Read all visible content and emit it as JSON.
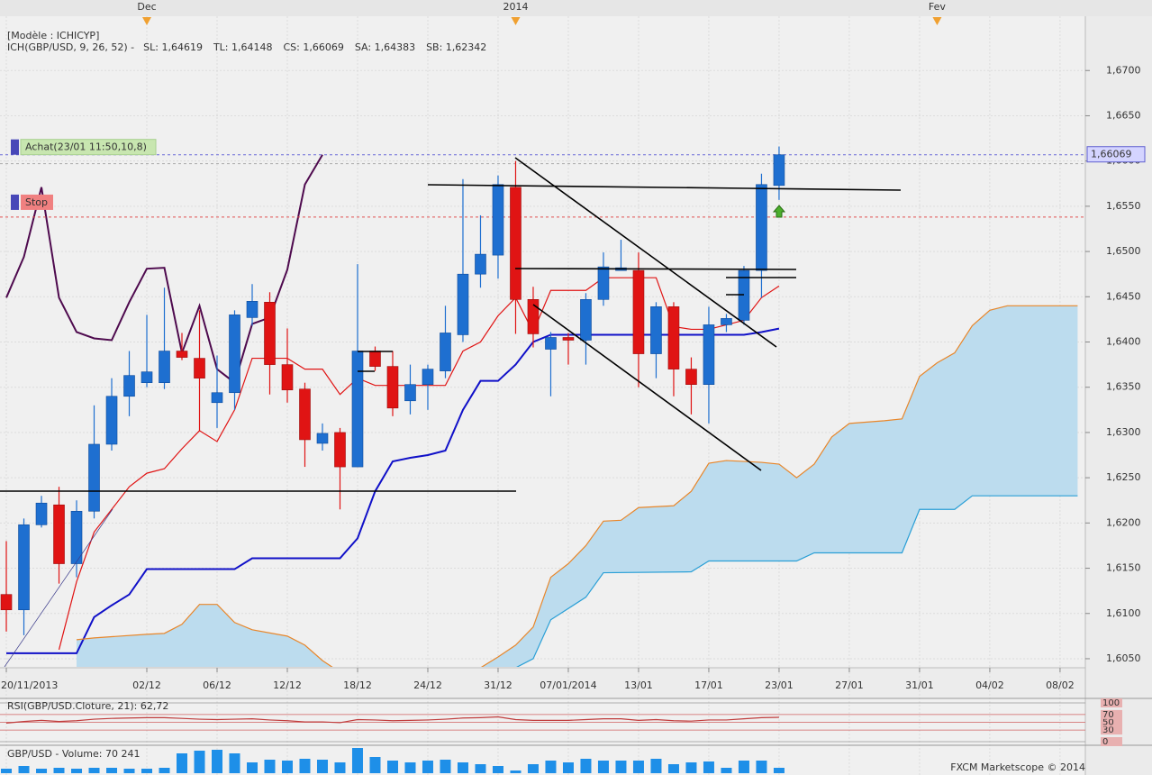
{
  "header": {
    "model": "[Modèle : ICHICYP]"
  },
  "chart_data": [
    {
      "type": "candlestick",
      "indicator": "ICH(GBP/USD, 9, 26, 52) -",
      "top_ticks": [
        {
          "value": 8,
          "label": "Dec"
        },
        {
          "value": 29,
          "label": "2014"
        },
        {
          "value": 53,
          "label": "Fev"
        }
      ],
      "xlim": [
        -0.36,
        61.44
      ],
      "xticks": [
        {
          "value": 0,
          "label": "20/11/2013"
        },
        {
          "value": 8,
          "label": "02/12"
        },
        {
          "value": 12,
          "label": "06/12"
        },
        {
          "value": 16,
          "label": "12/12"
        },
        {
          "value": 20,
          "label": "18/12"
        },
        {
          "value": 24,
          "label": "24/12"
        },
        {
          "value": 28,
          "label": "31/12"
        },
        {
          "value": 32,
          "label": "07/01/2014"
        },
        {
          "value": 36,
          "label": "13/01"
        },
        {
          "value": 40,
          "label": "17/01"
        },
        {
          "value": 44,
          "label": "23/01"
        },
        {
          "value": 48,
          "label": "27/01"
        },
        {
          "value": 52,
          "label": "31/01"
        },
        {
          "value": 56,
          "label": "04/02"
        },
        {
          "value": 60,
          "label": "08/02"
        }
      ],
      "ylim": [
        1.6041,
        1.676
      ],
      "yticks": [
        {
          "value": 1.605,
          "label": "1,6050"
        },
        {
          "value": 1.61,
          "label": "1,6100"
        },
        {
          "value": 1.615,
          "label": "1,6150"
        },
        {
          "value": 1.62,
          "label": "1,6200"
        },
        {
          "value": 1.625,
          "label": "1,6250"
        },
        {
          "value": 1.63,
          "label": "1,6300"
        },
        {
          "value": 1.635,
          "label": "1,6350"
        },
        {
          "value": 1.64,
          "label": "1,6400"
        },
        {
          "value": 1.645,
          "label": "1,6450"
        },
        {
          "value": 1.65,
          "label": "1,6500"
        },
        {
          "value": 1.655,
          "label": "1,6550"
        },
        {
          "value": 1.66,
          "label": "1,6600"
        },
        {
          "value": 1.665,
          "label": "1,6650"
        },
        {
          "value": 1.67,
          "label": "1,6700"
        }
      ],
      "grid": true,
      "up_color": "#1e6fd0",
      "down_color": "#e01414",
      "open": [
        1.6121,
        1.6104,
        1.6198,
        1.622,
        1.6155,
        1.6213,
        1.6287,
        1.634,
        1.6355,
        1.6355,
        1.639,
        1.6382,
        1.6333,
        1.6344,
        1.6427,
        1.6444,
        1.6375,
        1.6348,
        1.6288,
        1.63,
        1.6262,
        1.639,
        1.6373,
        1.6335,
        1.6353,
        1.6368,
        1.6408,
        1.6475,
        1.6496,
        1.6571,
        1.6447,
        1.6392,
        1.6405,
        1.6402,
        1.6447,
        1.6479,
        1.6479,
        1.6387,
        1.6439,
        1.637,
        1.6353,
        1.6419,
        1.6424,
        1.6479,
        1.6573
      ],
      "high": [
        1.618,
        1.6205,
        1.623,
        1.624,
        1.6225,
        1.633,
        1.636,
        1.639,
        1.643,
        1.646,
        1.641,
        1.6435,
        1.6385,
        1.6435,
        1.6464,
        1.6455,
        1.6415,
        1.6355,
        1.631,
        1.6305,
        1.6486,
        1.6395,
        1.639,
        1.6375,
        1.6375,
        1.644,
        1.658,
        1.654,
        1.6584,
        1.66,
        1.6461,
        1.6411,
        1.641,
        1.6454,
        1.6499,
        1.6513,
        1.6499,
        1.6444,
        1.6444,
        1.6383,
        1.6439,
        1.6431,
        1.6484,
        1.6586,
        1.6616
      ],
      "low": [
        1.608,
        1.6076,
        1.6195,
        1.6133,
        1.614,
        1.6205,
        1.628,
        1.6318,
        1.635,
        1.6348,
        1.638,
        1.6302,
        1.6305,
        1.6325,
        1.6418,
        1.6342,
        1.6333,
        1.6262,
        1.628,
        1.6215,
        1.6262,
        1.6368,
        1.6318,
        1.632,
        1.6325,
        1.636,
        1.64,
        1.646,
        1.647,
        1.6409,
        1.6394,
        1.634,
        1.6375,
        1.6375,
        1.644,
        1.6479,
        1.635,
        1.636,
        1.634,
        1.632,
        1.631,
        1.6411,
        1.6419,
        1.6449,
        1.6557
      ],
      "close": [
        1.6104,
        1.6198,
        1.6222,
        1.6155,
        1.6213,
        1.6287,
        1.634,
        1.6363,
        1.6367,
        1.639,
        1.6383,
        1.636,
        1.6344,
        1.643,
        1.6445,
        1.6375,
        1.6347,
        1.6292,
        1.6299,
        1.6262,
        1.639,
        1.6373,
        1.6327,
        1.6353,
        1.637,
        1.641,
        1.6475,
        1.6497,
        1.6574,
        1.6447,
        1.6409,
        1.6405,
        1.6402,
        1.6447,
        1.6483,
        1.6482,
        1.6387,
        1.6439,
        1.637,
        1.6353,
        1.6419,
        1.6426,
        1.6479,
        1.6574,
        1.66069
      ],
      "series": [
        {
          "name": "SL: 1,64619",
          "color": "#e01414",
          "x": [
            3,
            4,
            5,
            6,
            7,
            8,
            9,
            10,
            11,
            12,
            13,
            14,
            15,
            16,
            17,
            18,
            19,
            20,
            21,
            22,
            23,
            24,
            25,
            26,
            27,
            28,
            29,
            30,
            31,
            32,
            33,
            34,
            35,
            36,
            37,
            38,
            39,
            40,
            41,
            42,
            43,
            44
          ],
          "values": [
            1.606,
            1.6135,
            1.619,
            1.6215,
            1.624,
            1.6255,
            1.626,
            1.6282,
            1.6302,
            1.629,
            1.6325,
            1.6382,
            1.6382,
            1.6382,
            1.637,
            1.637,
            1.6342,
            1.636,
            1.6352,
            1.6352,
            1.6352,
            1.6352,
            1.6352,
            1.639,
            1.64,
            1.6429,
            1.6449,
            1.6411,
            1.6457,
            1.6457,
            1.6457,
            1.6471,
            1.6471,
            1.6471,
            1.6471,
            1.6417,
            1.6414,
            1.6414,
            1.6419,
            1.6424,
            1.6449,
            1.64619
          ]
        },
        {
          "name": "TL: 1,64148",
          "color": "#1010c8",
          "x": [
            0,
            1,
            2,
            3,
            4,
            5,
            6,
            7,
            8,
            9,
            10,
            11,
            12,
            13,
            14,
            15,
            16,
            17,
            18,
            19,
            20,
            21,
            22,
            23,
            24,
            25,
            26,
            27,
            28,
            29,
            30,
            31,
            32,
            33,
            34,
            35,
            36,
            37,
            38,
            39,
            40,
            41,
            42,
            43,
            44
          ],
          "values": [
            1.6056,
            1.6056,
            1.6056,
            1.6056,
            1.6056,
            1.6096,
            1.6109,
            1.6121,
            1.6149,
            1.6149,
            1.6149,
            1.6149,
            1.6149,
            1.6149,
            1.6161,
            1.6161,
            1.6161,
            1.6161,
            1.6161,
            1.6161,
            1.6183,
            1.6235,
            1.6268,
            1.6272,
            1.6275,
            1.628,
            1.6325,
            1.6357,
            1.6357,
            1.6375,
            1.64,
            1.6408,
            1.6408,
            1.6408,
            1.6408,
            1.6408,
            1.6408,
            1.6408,
            1.6408,
            1.6408,
            1.6408,
            1.6408,
            1.6408,
            1.6411,
            1.64148
          ]
        },
        {
          "name": "CS: 1,66069",
          "color": "#4e0a4e",
          "x": [
            0,
            1,
            2,
            3,
            4,
            5,
            6,
            7,
            8,
            9,
            10,
            11,
            12,
            13,
            14,
            15,
            16,
            17,
            18
          ],
          "values": [
            1.6449,
            1.6494,
            1.6571,
            1.6449,
            1.6411,
            1.6404,
            1.6402,
            1.6444,
            1.6481,
            1.6482,
            1.6388,
            1.644,
            1.637,
            1.6355,
            1.642,
            1.6427,
            1.648,
            1.6574,
            1.66069
          ]
        },
        {
          "name": "SA: 1,64383",
          "color": "#e8862a",
          "x": [
            4,
            5,
            8,
            9,
            10,
            11,
            12,
            13,
            14,
            16,
            17,
            18,
            19,
            27,
            28,
            29,
            30,
            31,
            32,
            33,
            34,
            35,
            36,
            38,
            39,
            40,
            41,
            43,
            44,
            45,
            46,
            47,
            48,
            50,
            51,
            52,
            53,
            54,
            55,
            56,
            57,
            58,
            61
          ],
          "values": [
            1.6071,
            1.6073,
            1.6077,
            1.6078,
            1.6088,
            1.611,
            1.611,
            1.609,
            1.6082,
            1.6075,
            1.6065,
            1.6048,
            1.6035,
            1.604,
            1.6052,
            1.6065,
            1.6085,
            1.614,
            1.6155,
            1.6175,
            1.6202,
            1.6203,
            1.6217,
            1.6219,
            1.6235,
            1.6266,
            1.6269,
            1.6267,
            1.6265,
            1.625,
            1.6265,
            1.6295,
            1.631,
            1.6313,
            1.6315,
            1.6362,
            1.6377,
            1.6388,
            1.6418,
            1.6435,
            1.644,
            1.644,
            1.644
          ]
        },
        {
          "name": "SB: 1,62342",
          "color": "#2a9fd6",
          "x": [
            4,
            29,
            30,
            31,
            33,
            34,
            39,
            40,
            45,
            46,
            51,
            52,
            54,
            55,
            61
          ],
          "values": [
            1.604,
            1.604,
            1.605,
            1.6093,
            1.6118,
            1.6145,
            1.6146,
            1.6158,
            1.6158,
            1.6167,
            1.6167,
            1.6215,
            1.6215,
            1.623,
            1.623
          ]
        }
      ],
      "cloud_color": "#bcdcee",
      "last_price": {
        "value": 1.66069,
        "label": "1,66069"
      },
      "order": {
        "value": 1.6597,
        "label": "Achat(23/01 11:50,10,8)"
      },
      "stop": {
        "value": 1.6538,
        "label": "Stop"
      }
    },
    {
      "type": "rsi_line",
      "title": "RSI(GBP/USD.Cloture, 21): 62,72",
      "color": "#c03c3c",
      "ylim": [
        0,
        100
      ],
      "yticks": [
        0,
        30,
        50,
        70,
        100
      ],
      "values": [
        48,
        52,
        55,
        52,
        54,
        58,
        60,
        61,
        62,
        62,
        60,
        58,
        57,
        58,
        59,
        56,
        54,
        51,
        51,
        49,
        57,
        56,
        54,
        55,
        56,
        58,
        61,
        62,
        64,
        57,
        55,
        55,
        55,
        57,
        59,
        59,
        55,
        57,
        54,
        53,
        56,
        56,
        59,
        62,
        62.72
      ]
    },
    {
      "type": "volume_bar",
      "title": "GBP/USD - Volume: 70 241",
      "color": "#1e8fe8",
      "values": [
        58535,
        93656,
        58535,
        70242,
        58535,
        70242,
        70242,
        58535,
        58535,
        70242,
        257554,
        292675,
        304382,
        257554,
        140484,
        175605,
        163898,
        187312,
        175605,
        140484,
        327796,
        210726,
        163898,
        140484,
        163898,
        175605,
        140484,
        117070,
        93656,
        35121,
        117070,
        163898,
        140484,
        187312,
        163898,
        163898,
        163898,
        187312,
        117070,
        140484,
        152191,
        70242,
        163898,
        163898,
        70241
      ]
    }
  ],
  "footer": "FXCM Marketscope © 2014"
}
